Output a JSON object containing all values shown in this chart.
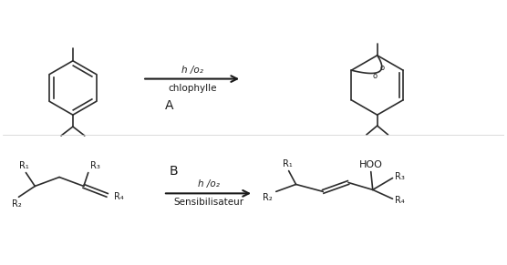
{
  "background_color": "#ffffff",
  "line_color": "#2c2c2c",
  "text_color": "#1a1a1a",
  "arrow_color": "#1a1a1a",
  "fig_width": 5.56,
  "fig_height": 2.91,
  "dpi": 100,
  "label_A": "A",
  "label_B": "B",
  "arrow_text_top_A": "h /o₂",
  "arrow_text_bottom_A": "chlophylle",
  "arrow_text_top_B": "h /o₂",
  "arrow_text_bottom_B": "Sensibilisateur",
  "hoo_label": "HOO"
}
